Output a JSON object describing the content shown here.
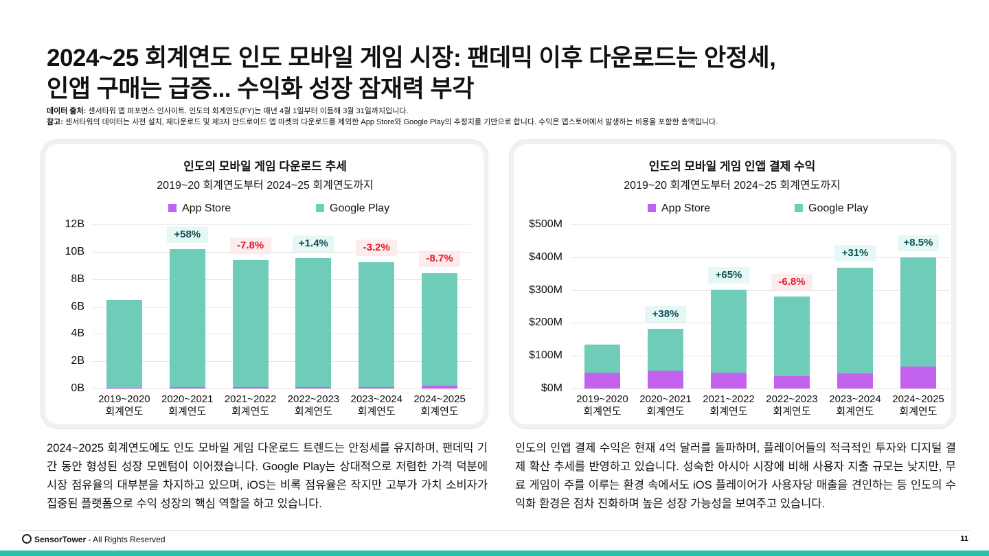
{
  "title_lines": [
    "2024~25 회계연도 인도 모바일 게임 시장: 팬데믹 이후 다운로드는 안정세,",
    "인앱 구매는 급증... 수익화 성장 잠재력 부각"
  ],
  "notes": [
    {
      "label": "데이터 출처:",
      "text": "센서타워 앱 퍼포먼스 인사이트. 인도의 회계연도(FY)는 매년 4월 1일부터 이듬해 3월 31일까지입니다."
    },
    {
      "label": "참고:",
      "text": "센서타워의 데이터는 사전 설치, 재다운로드 및 제3자 안드로이드 앱 마켓의 다운로드를 제외한 App Store와 Google Play의 추정치를 기반으로 합니다. 수익은 앱스토어에서 발생하는 비용을 포함한 총액입니다."
    }
  ],
  "chart_data": [
    {
      "type": "bar",
      "stacked": true,
      "title": "인도의 모바일 게임 다운로드 추세",
      "subtitle": "2019~20 회계연도부터 2024~25 회계연도까지",
      "categories": [
        "2019~2020\n회계연도",
        "2020~2021\n회계연도",
        "2021~2022\n회계연도",
        "2022~2023\n회계연도",
        "2023~2024\n회계연도",
        "2024~2025\n회계연도"
      ],
      "series": [
        {
          "name": "App Store",
          "color": "#c462f0",
          "values": [
            0.05,
            0.12,
            0.12,
            0.12,
            0.12,
            0.18
          ]
        },
        {
          "name": "Google Play",
          "color": "#6fccb8",
          "values": [
            6.45,
            10.08,
            9.28,
            9.43,
            9.13,
            8.27
          ]
        }
      ],
      "annotations": [
        null,
        "+58%",
        "-7.8%",
        "+1.4%",
        "-3.2%",
        "-8.7%"
      ],
      "ylim": [
        0,
        12
      ],
      "yticks": [
        {
          "value": 0,
          "label": "0B"
        },
        {
          "value": 2,
          "label": "2B"
        },
        {
          "value": 4,
          "label": "4B"
        },
        {
          "value": 6,
          "label": "6B"
        },
        {
          "value": 8,
          "label": "8B"
        },
        {
          "value": 10,
          "label": "10B"
        },
        {
          "value": 12,
          "label": "12B"
        }
      ],
      "grid": true,
      "legend": "top"
    },
    {
      "type": "bar",
      "stacked": true,
      "title": "인도의 모바일 게임 인앱 결제 수익",
      "subtitle": "2019~20 회계연도부터 2024~25 회계연도까지",
      "categories": [
        "2019~2020\n회계연도",
        "2020~2021\n회계연도",
        "2021~2022\n회계연도",
        "2022~2023\n회계연도",
        "2023~2024\n회계연도",
        "2024~2025\n회계연도"
      ],
      "series": [
        {
          "name": "App Store",
          "color": "#c462f0",
          "values": [
            48,
            54,
            49,
            37,
            45,
            66
          ]
        },
        {
          "name": "Google Play",
          "color": "#6fccb8",
          "values": [
            85,
            129,
            252,
            244,
            324,
            334
          ]
        }
      ],
      "annotations": [
        null,
        "+38%",
        "+65%",
        "-6.8%",
        "+31%",
        "+8.5%"
      ],
      "ylim": [
        0,
        500
      ],
      "yticks": [
        {
          "value": 0,
          "label": "$0M"
        },
        {
          "value": 100,
          "label": "$100M"
        },
        {
          "value": 200,
          "label": "$200M"
        },
        {
          "value": 300,
          "label": "$300M"
        },
        {
          "value": 400,
          "label": "$400M"
        },
        {
          "value": 500,
          "label": "$500M"
        }
      ],
      "grid": true,
      "legend": "top"
    }
  ],
  "paragraphs": [
    "2024~2025 회계연도에도 인도 모바일 게임 다운로드 트렌드는 안정세를 유지하며, 팬데믹 기간 동안 형성된 성장 모멘텀이 이어졌습니다. Google Play는 상대적으로 저렴한 가격 덕분에 시장 점유율의 대부분을 차지하고 있으며, iOS는 비록 점유율은 작지만 고부가 가치 소비자가 집중된 플랫폼으로 수익 성장의 핵심 역할을 하고 있습니다.",
    "인도의 인앱 결제 수익은 현재 4억 달러를 돌파하며, 플레이어들의 적극적인 투자와 디지털 결제 확산 추세를 반영하고 있습니다. 성숙한 아시아 시장에 비해 사용자 지출 규모는 낮지만, 무료 게임이 주를 이루는 환경 속에서도 iOS 플레이어가 사용자당 매출을 견인하는 등 인도의 수익화 환경은 점차 진화하며 높은 성장 가능성을 보여주고 있습니다."
  ],
  "footer": {
    "brand": "SensorTower",
    "rights": "- All Rights Reserved",
    "page": "11"
  }
}
